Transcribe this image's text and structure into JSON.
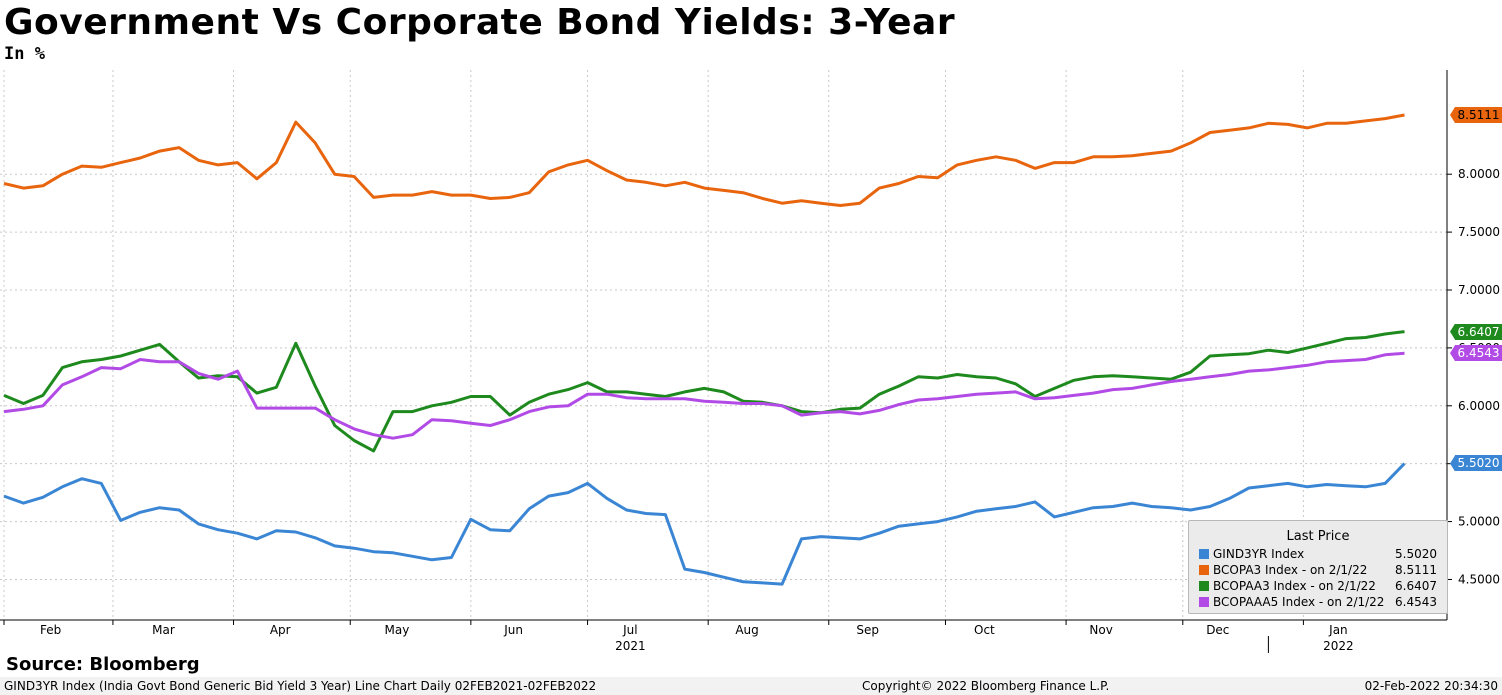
{
  "title": "Government Vs Corporate Bond Yields: 3-Year",
  "subtitle": "In %",
  "source": "Source: Bloomberg",
  "footer": {
    "left": "GIND3YR Index (India Govt Bond Generic Bid Yield 3 Year) Line Chart  Daily 02FEB2021-02FEB2022",
    "center": "Copyright© 2022 Bloomberg Finance L.P.",
    "right": "02-Feb-2022 20:34:30"
  },
  "legend": {
    "header": "Last Price",
    "items": [
      {
        "name": "GIND3YR Index",
        "value": "5.5020",
        "color": "#3a86d4"
      },
      {
        "name": "BCOPA3 Index -  on 2/1/22",
        "value": "8.5111",
        "color": "#e8650e"
      },
      {
        "name": "BCOPAA3 Index -  on 2/1/22",
        "value": "6.6407",
        "color": "#1e8a1e"
      },
      {
        "name": "BCOPAAA5 Index -  on 2/1/22",
        "value": "6.4543",
        "color": "#b24be6"
      }
    ]
  },
  "chart_data": {
    "type": "line",
    "title": "Government Vs Corporate Bond Yields: 3-Year",
    "ylabel": "In %",
    "ylim": [
      4.15,
      8.9
    ],
    "yticks": [
      "4.5000",
      "5.0000",
      "5.5000",
      "6.0000",
      "6.5000",
      "7.0000",
      "7.5000",
      "8.0000"
    ],
    "ytick_values": [
      4.5,
      5.0,
      5.5,
      6.0,
      6.5,
      7.0,
      7.5,
      8.0
    ],
    "xlim": [
      0,
      365
    ],
    "month_labels": [
      "Feb",
      "Mar",
      "Apr",
      "May",
      "Jun",
      "Jul",
      "Aug",
      "Sep",
      "Oct",
      "Nov",
      "Dec",
      "Jan"
    ],
    "month_label_days": [
      12,
      41,
      71,
      101,
      131,
      161,
      191,
      222,
      252,
      282,
      312,
      343
    ],
    "month_starts": [
      0,
      28,
      59,
      89,
      120,
      150,
      181,
      212,
      242,
      273,
      303,
      334
    ],
    "year_labels": [
      "2021",
      "2022"
    ],
    "year_label_days": [
      161,
      343
    ],
    "x_days": [
      0,
      5,
      10,
      15,
      20,
      25,
      30,
      35,
      40,
      45,
      50,
      55,
      60,
      65,
      70,
      75,
      80,
      85,
      90,
      95,
      100,
      105,
      110,
      115,
      120,
      125,
      130,
      135,
      140,
      145,
      150,
      155,
      160,
      165,
      170,
      175,
      180,
      185,
      190,
      195,
      200,
      205,
      210,
      215,
      220,
      225,
      230,
      235,
      240,
      245,
      250,
      255,
      260,
      265,
      270,
      275,
      280,
      285,
      290,
      295,
      300,
      305,
      310,
      315,
      320,
      325,
      330,
      335,
      340,
      345,
      350,
      355,
      360
    ],
    "series": [
      {
        "name": "GIND3YR Index",
        "color": "#3a86d4",
        "last": 5.502,
        "values": [
          5.22,
          5.16,
          5.21,
          5.3,
          5.37,
          5.33,
          5.01,
          5.08,
          5.12,
          5.1,
          4.98,
          4.93,
          4.9,
          4.85,
          4.92,
          4.91,
          4.86,
          4.79,
          4.77,
          4.74,
          4.73,
          4.7,
          4.67,
          4.69,
          5.02,
          4.93,
          4.92,
          5.11,
          5.22,
          5.25,
          5.33,
          5.2,
          5.1,
          5.07,
          5.06,
          4.59,
          4.56,
          4.52,
          4.48,
          4.47,
          4.46,
          4.85,
          4.87,
          4.86,
          4.85,
          4.9,
          4.96,
          4.98,
          5.0,
          5.04,
          5.09,
          5.11,
          5.13,
          5.17,
          5.04,
          5.08,
          5.12,
          5.13,
          5.16,
          5.13,
          5.12,
          5.1,
          5.13,
          5.2,
          5.29,
          5.31,
          5.33,
          5.3,
          5.32,
          5.31,
          5.3,
          5.33,
          5.502
        ]
      },
      {
        "name": "BCOPA3 Index",
        "color": "#e8650e",
        "last": 8.5111,
        "values": [
          7.92,
          7.88,
          7.9,
          8.0,
          8.07,
          8.06,
          8.1,
          8.14,
          8.2,
          8.23,
          8.12,
          8.08,
          8.1,
          7.96,
          8.1,
          8.45,
          8.27,
          8.0,
          7.98,
          7.8,
          7.82,
          7.82,
          7.85,
          7.82,
          7.82,
          7.79,
          7.8,
          7.84,
          8.02,
          8.08,
          8.12,
          8.03,
          7.95,
          7.93,
          7.9,
          7.93,
          7.88,
          7.86,
          7.84,
          7.79,
          7.75,
          7.77,
          7.75,
          7.73,
          7.75,
          7.88,
          7.92,
          7.98,
          7.97,
          8.08,
          8.12,
          8.15,
          8.12,
          8.05,
          8.1,
          8.1,
          8.15,
          8.15,
          8.16,
          8.18,
          8.2,
          8.27,
          8.36,
          8.38,
          8.4,
          8.44,
          8.43,
          8.4,
          8.44,
          8.44,
          8.46,
          8.48,
          8.5111
        ]
      },
      {
        "name": "BCOPAA3 Index",
        "color": "#1e8a1e",
        "last": 6.6407,
        "values": [
          6.09,
          6.02,
          6.09,
          6.33,
          6.38,
          6.4,
          6.43,
          6.48,
          6.53,
          6.38,
          6.24,
          6.26,
          6.25,
          6.11,
          6.16,
          6.54,
          6.17,
          5.83,
          5.7,
          5.61,
          5.95,
          5.95,
          6.0,
          6.03,
          6.08,
          6.08,
          5.92,
          6.03,
          6.1,
          6.14,
          6.2,
          6.12,
          6.12,
          6.1,
          6.08,
          6.12,
          6.15,
          6.12,
          6.04,
          6.03,
          6.0,
          5.95,
          5.94,
          5.97,
          5.98,
          6.1,
          6.17,
          6.25,
          6.24,
          6.27,
          6.25,
          6.24,
          6.19,
          6.08,
          6.15,
          6.22,
          6.25,
          6.26,
          6.25,
          6.24,
          6.23,
          6.29,
          6.43,
          6.44,
          6.45,
          6.48,
          6.46,
          6.5,
          6.54,
          6.58,
          6.59,
          6.62,
          6.6407
        ]
      },
      {
        "name": "BCOPAAA5 Index",
        "color": "#b24be6",
        "last": 6.4543,
        "values": [
          5.95,
          5.97,
          6.0,
          6.18,
          6.25,
          6.33,
          6.32,
          6.4,
          6.38,
          6.38,
          6.28,
          6.23,
          6.3,
          5.98,
          5.98,
          5.98,
          5.98,
          5.88,
          5.8,
          5.75,
          5.72,
          5.75,
          5.88,
          5.87,
          5.85,
          5.83,
          5.88,
          5.95,
          5.99,
          6.0,
          6.1,
          6.1,
          6.07,
          6.06,
          6.06,
          6.06,
          6.04,
          6.03,
          6.02,
          6.02,
          6.0,
          5.92,
          5.94,
          5.95,
          5.93,
          5.96,
          6.01,
          6.05,
          6.06,
          6.08,
          6.1,
          6.11,
          6.12,
          6.06,
          6.07,
          6.09,
          6.11,
          6.14,
          6.15,
          6.18,
          6.21,
          6.23,
          6.25,
          6.27,
          6.3,
          6.31,
          6.33,
          6.35,
          6.38,
          6.39,
          6.4,
          6.44,
          6.4543
        ]
      }
    ]
  }
}
